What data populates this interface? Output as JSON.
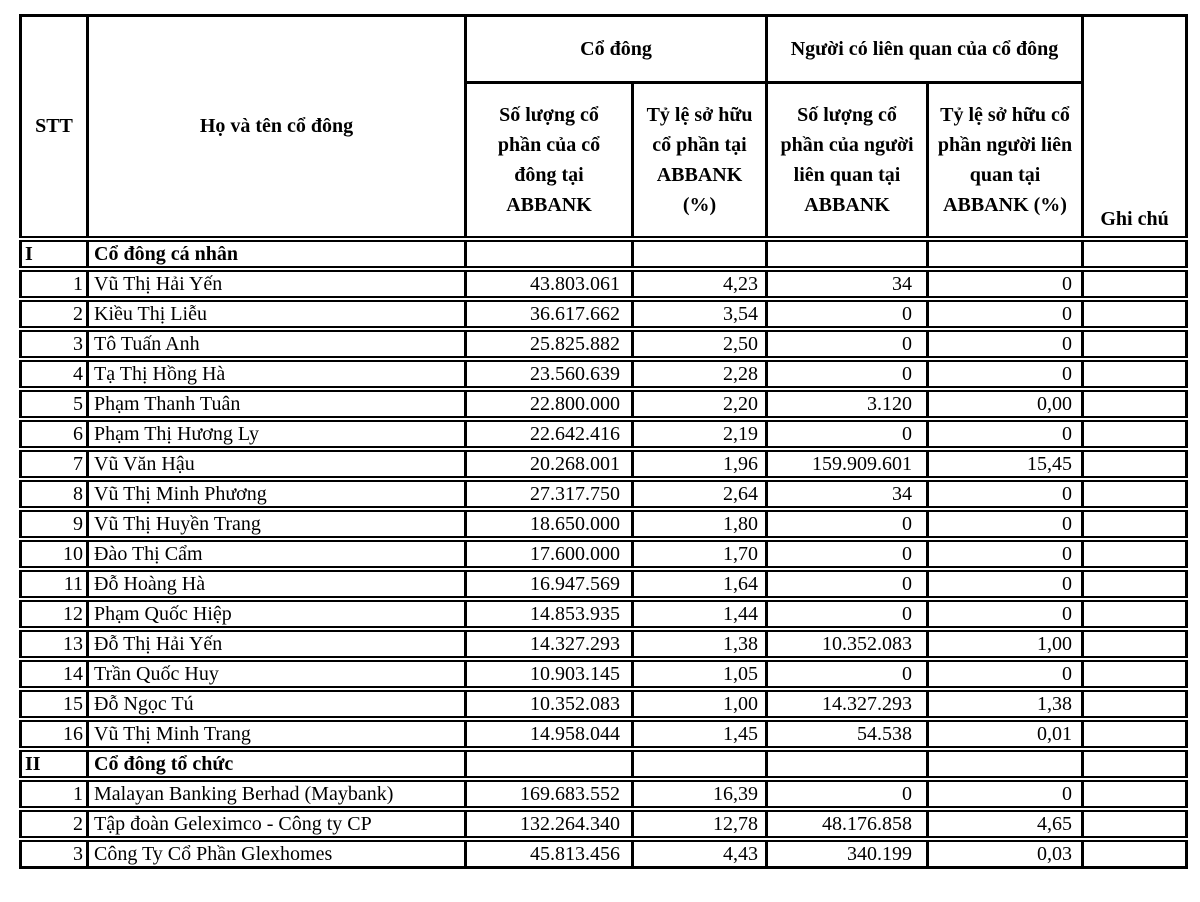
{
  "colors": {
    "background": "#ffffff",
    "border": "#000000",
    "text": "#000000"
  },
  "table": {
    "header": {
      "stt": "STT",
      "name": "Họ và tên cổ đông",
      "group_shareholder": "Cổ đông",
      "group_related": "Người có liên quan của cổ đông",
      "col_shares": "Số lượng cổ phần của cổ đông tại ABBANK",
      "col_pct": "Tỷ lệ sở hữu cổ phần tại ABBANK (%)",
      "col_related_shares": "Số lượng cổ phần của người liên quan tại ABBANK",
      "col_related_pct": "Tỷ lệ sở hữu cổ phần người liên quan tại ABBANK (%)",
      "notes": "Ghi chú"
    },
    "sections": [
      {
        "stt": "I",
        "title": "Cổ đông cá nhân",
        "rows": [
          {
            "stt": "1",
            "name": "Vũ Thị Hải Yến",
            "shares": "43.803.061",
            "pct": "4,23",
            "related_shares": "34",
            "related_pct": "0",
            "note": ""
          },
          {
            "stt": "2",
            "name": "Kiều Thị Liễu",
            "shares": "36.617.662",
            "pct": "3,54",
            "related_shares": "0",
            "related_pct": "0",
            "note": ""
          },
          {
            "stt": "3",
            "name": "Tô Tuấn Anh",
            "shares": "25.825.882",
            "pct": "2,50",
            "related_shares": "0",
            "related_pct": "0",
            "note": ""
          },
          {
            "stt": "4",
            "name": "Tạ Thị Hồng Hà",
            "shares": "23.560.639",
            "pct": "2,28",
            "related_shares": "0",
            "related_pct": "0",
            "note": ""
          },
          {
            "stt": "5",
            "name": "Phạm Thanh Tuân",
            "shares": "22.800.000",
            "pct": "2,20",
            "related_shares": "3.120",
            "related_pct": "0,00",
            "note": ""
          },
          {
            "stt": "6",
            "name": "Phạm Thị Hương Ly",
            "shares": "22.642.416",
            "pct": "2,19",
            "related_shares": "0",
            "related_pct": "0",
            "note": ""
          },
          {
            "stt": "7",
            "name": "Vũ Văn Hậu",
            "shares": "20.268.001",
            "pct": "1,96",
            "related_shares": "159.909.601",
            "related_pct": "15,45",
            "note": ""
          },
          {
            "stt": "8",
            "name": "Vũ Thị Minh Phương",
            "shares": "27.317.750",
            "pct": "2,64",
            "related_shares": "34",
            "related_pct": "0",
            "note": ""
          },
          {
            "stt": "9",
            "name": "Vũ Thị Huyền Trang",
            "shares": "18.650.000",
            "pct": "1,80",
            "related_shares": "0",
            "related_pct": "0",
            "note": ""
          },
          {
            "stt": "10",
            "name": "Đào Thị Cẩm",
            "shares": "17.600.000",
            "pct": "1,70",
            "related_shares": "0",
            "related_pct": "0",
            "note": ""
          },
          {
            "stt": "11",
            "name": "Đỗ Hoàng Hà",
            "shares": "16.947.569",
            "pct": "1,64",
            "related_shares": "0",
            "related_pct": "0",
            "note": ""
          },
          {
            "stt": "12",
            "name": "Phạm Quốc Hiệp",
            "shares": "14.853.935",
            "pct": "1,44",
            "related_shares": "0",
            "related_pct": "0",
            "note": ""
          },
          {
            "stt": "13",
            "name": "Đỗ Thị Hải Yến",
            "shares": "14.327.293",
            "pct": "1,38",
            "related_shares": "10.352.083",
            "related_pct": "1,00",
            "note": ""
          },
          {
            "stt": "14",
            "name": "Trần Quốc Huy",
            "shares": "10.903.145",
            "pct": "1,05",
            "related_shares": "0",
            "related_pct": "0",
            "note": ""
          },
          {
            "stt": "15",
            "name": "Đỗ Ngọc Tú",
            "shares": "10.352.083",
            "pct": "1,00",
            "related_shares": "14.327.293",
            "related_pct": "1,38",
            "note": ""
          },
          {
            "stt": "16",
            "name": "Vũ Thị Minh Trang",
            "shares": "14.958.044",
            "pct": "1,45",
            "related_shares": "54.538",
            "related_pct": "0,01",
            "note": ""
          }
        ]
      },
      {
        "stt": "II",
        "title": "Cổ đông tổ chức",
        "rows": [
          {
            "stt": "1",
            "name": "Malayan Banking Berhad (Maybank)",
            "shares": "169.683.552",
            "pct": "16,39",
            "related_shares": "0",
            "related_pct": "0",
            "note": ""
          },
          {
            "stt": "2",
            "name": "Tập đoàn Geleximco - Công ty CP",
            "shares": "132.264.340",
            "pct": "12,78",
            "related_shares": "48.176.858",
            "related_pct": "4,65",
            "note": ""
          },
          {
            "stt": "3",
            "name": "Công Ty Cổ Phần Glexhomes",
            "shares": "45.813.456",
            "pct": "4,43",
            "related_shares": "340.199",
            "related_pct": "0,03",
            "note": ""
          }
        ]
      }
    ]
  }
}
